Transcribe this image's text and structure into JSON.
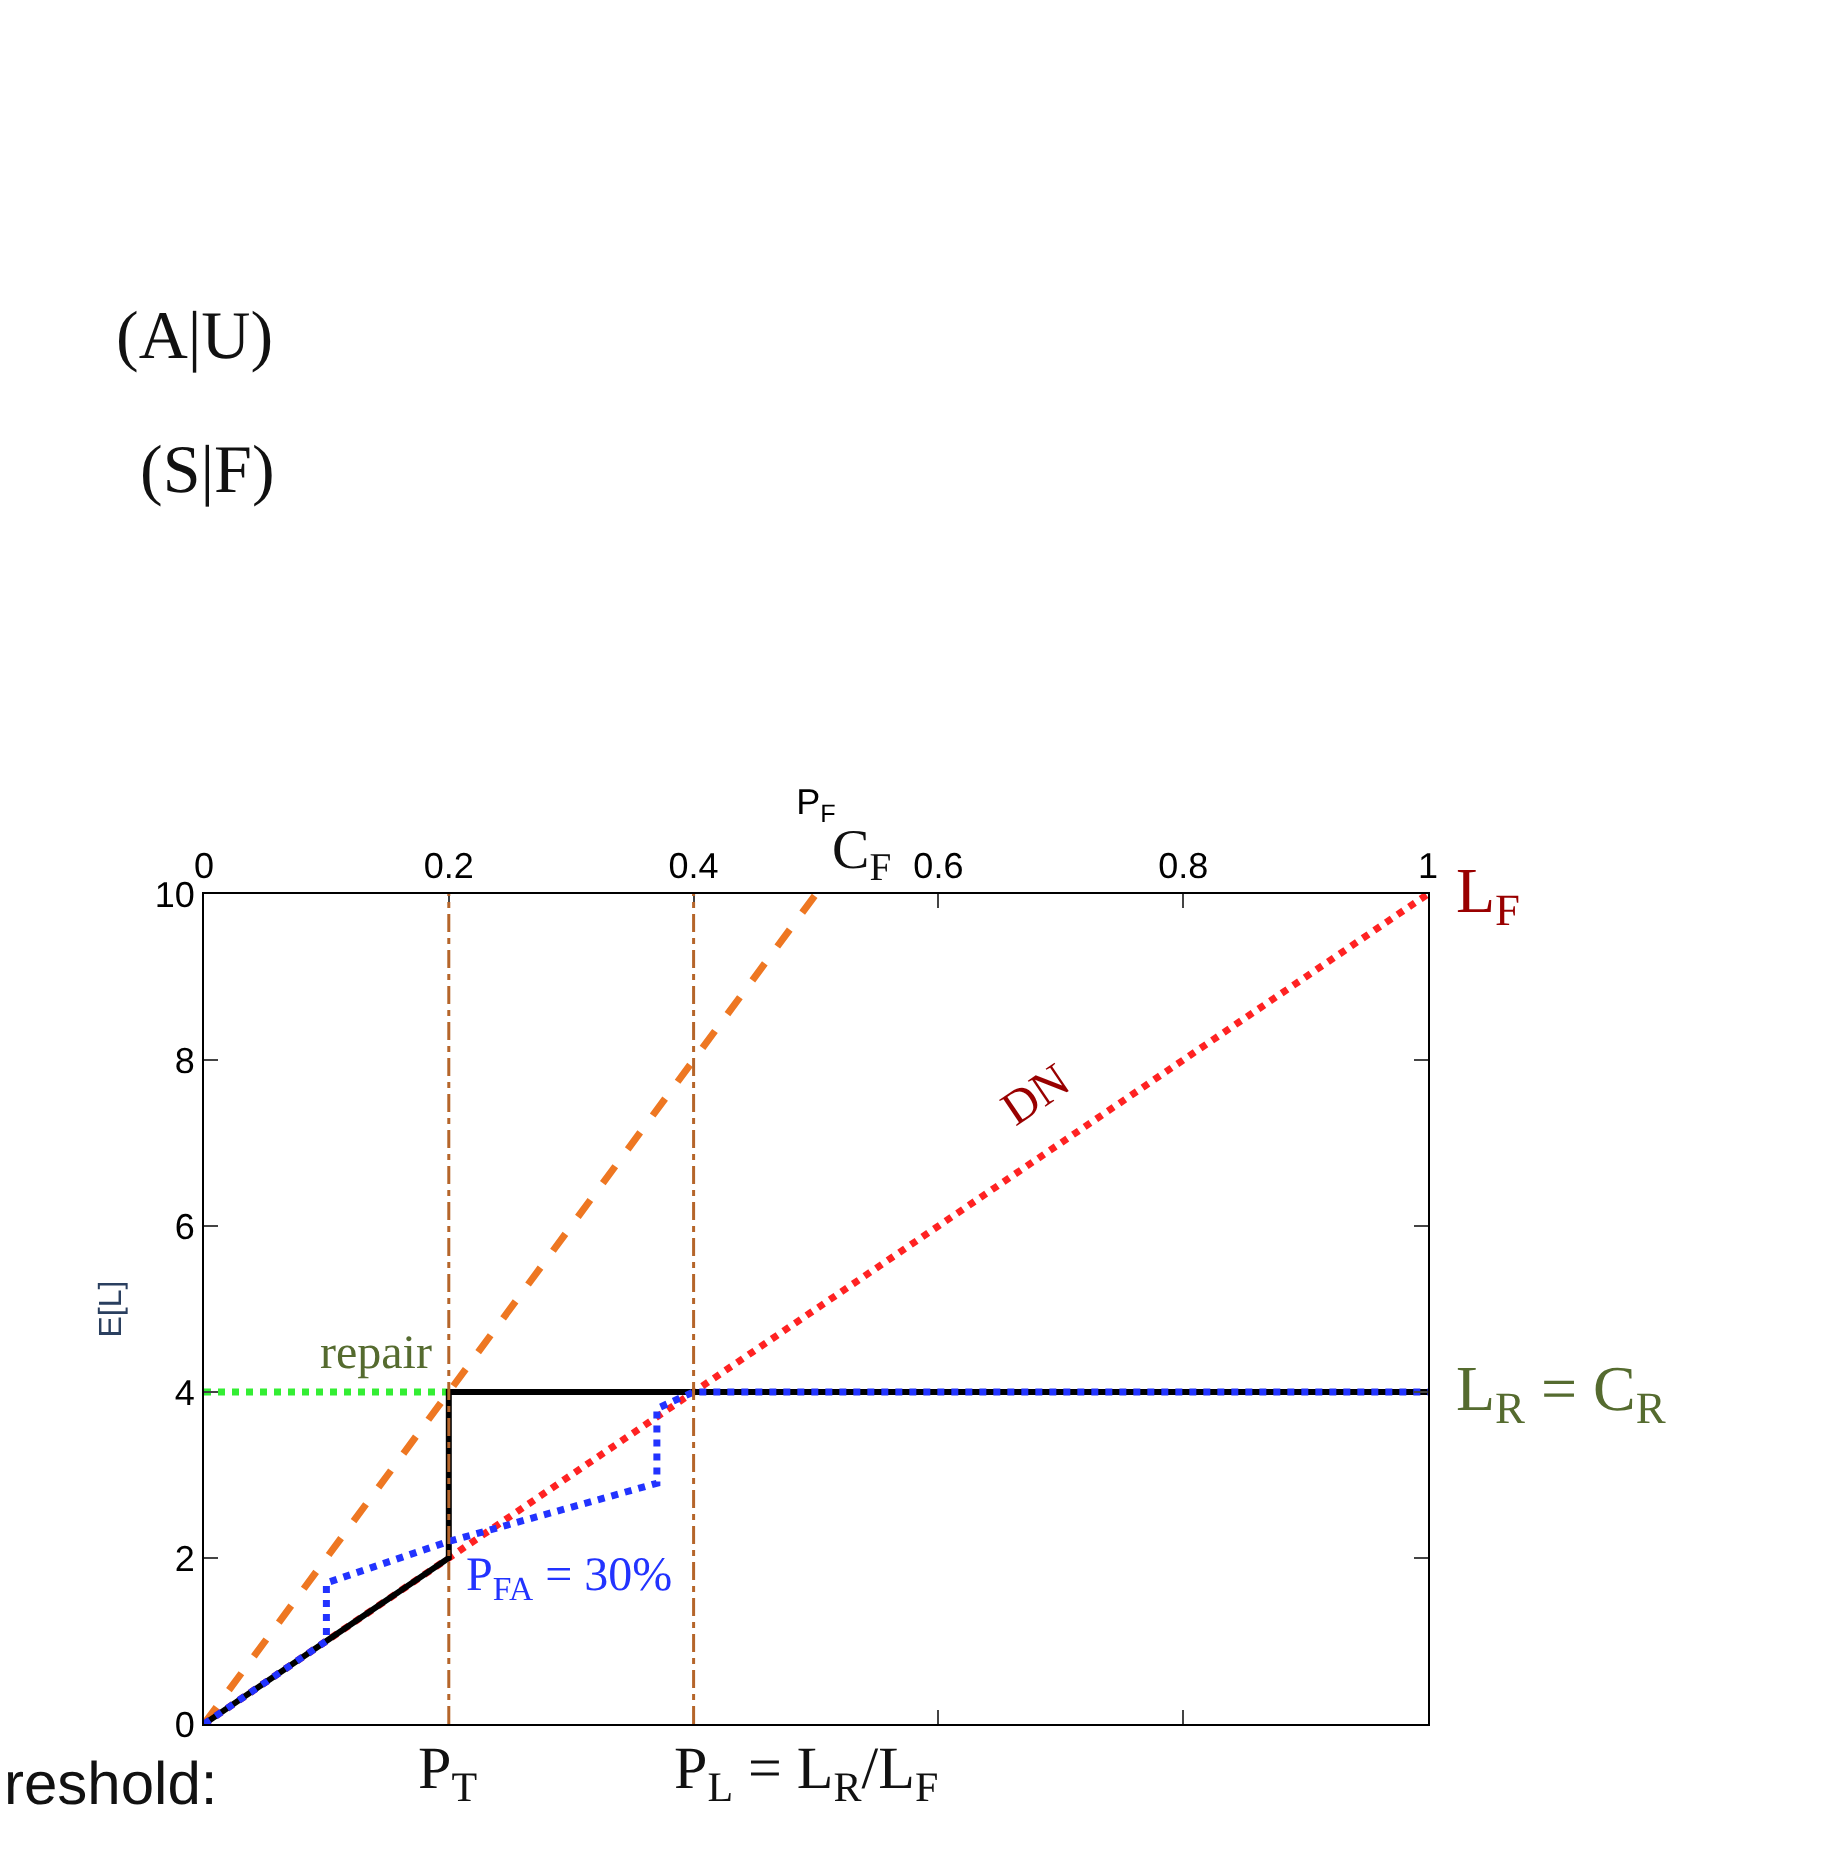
{
  "chart_data": {
    "type": "line",
    "xlabel": "P$_{F}$",
    "ylabel": "E[L]",
    "xlim": [
      0,
      1
    ],
    "xticks": [
      0,
      0.2,
      0.4,
      0.6,
      0.8,
      1
    ],
    "ylim": [
      0,
      10
    ],
    "yticks": [
      0,
      2,
      4,
      6,
      8,
      10
    ],
    "grid": false,
    "legend": false,
    "marker": "none",
    "series": [
      {
        "name": "C$_{F}$",
        "color": "#ee7722",
        "line_style": "dashed",
        "x": [
          0,
          0.5
        ],
        "values": [
          0,
          10
        ]
      },
      {
        "name": "DN",
        "color": "#ff2222",
        "line_style": "dotted",
        "x": [
          0,
          1
        ],
        "values": [
          0,
          10
        ]
      },
      {
        "name": "repair",
        "color": "#33ee33",
        "line_style": "dotted",
        "x": [
          0,
          0.2
        ],
        "values": [
          4,
          4
        ]
      },
      {
        "color": "#000000",
        "line_style": "solid",
        "x": [
          0,
          0.1,
          0.2,
          0.2,
          1
        ],
        "values": [
          0,
          1,
          2,
          4,
          4
        ]
      },
      {
        "name": "P$_{FA}$ = 30%",
        "color": "#2233ff",
        "line_style": "dotted",
        "x": [
          0,
          0.1,
          0.1,
          0.2,
          0.37,
          0.37,
          0.4,
          1
        ],
        "values": [
          0,
          1,
          1.7,
          2.2,
          2.9,
          3.8,
          4,
          4
        ]
      }
    ],
    "ref_lines": [
      {
        "axis": "x",
        "value": 0.2,
        "label": "P$_{T}$",
        "color": "#b5652a",
        "line_style": "dashdot"
      },
      {
        "axis": "x",
        "value": 0.4,
        "label": "P$_{L}$ = L$_{R}$/L$_{F}$",
        "color": "#b5652a",
        "line_style": "dashdot"
      }
    ],
    "annotations": [
      {
        "text": "L$_{F}$",
        "x": 1,
        "y": 10
      },
      {
        "text": "L$_{R}$ = C$_{R}$",
        "x": 1,
        "y": 4
      },
      "(A|U)",
      "(S|F)",
      "reshold:"
    ]
  }
}
